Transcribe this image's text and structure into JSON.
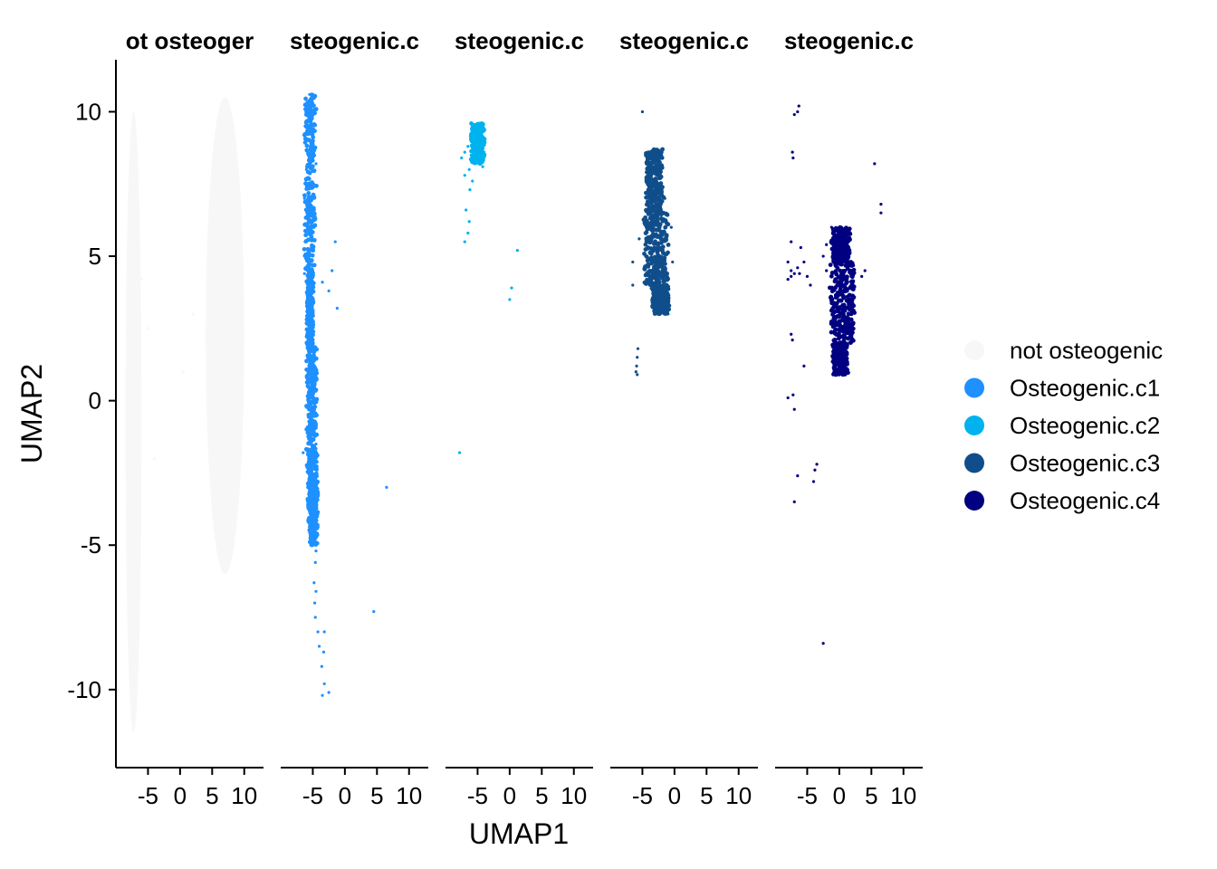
{
  "chart_data": {
    "type": "scatter",
    "facet": "split_by_group",
    "xlabel": "UMAP1",
    "ylabel": "UMAP2",
    "xlim": [
      -10,
      13
    ],
    "ylim": [
      -12.7,
      11.8
    ],
    "x_ticks": [
      -5,
      0,
      5,
      10
    ],
    "x_tick_labels": [
      "-5",
      "0",
      "5",
      "10"
    ],
    "y_ticks": [
      10,
      5,
      0,
      -5,
      -10
    ],
    "y_tick_labels": [
      "10",
      "5",
      "0",
      "-5",
      "-10"
    ],
    "grid": false,
    "legend_position": "right",
    "panels": [
      {
        "title": "ot osteoger",
        "group": "not osteogenic"
      },
      {
        "title": "steogenic.c",
        "group": "Osteogenic.c1"
      },
      {
        "title": "steogenic.c",
        "group": "Osteogenic.c2"
      },
      {
        "title": "steogenic.c",
        "group": "Osteogenic.c3"
      },
      {
        "title": "steogenic.c",
        "group": "Osteogenic.c4"
      }
    ],
    "series": [
      {
        "name": "not osteogenic",
        "color": "#f7f7f7",
        "regions": [
          {
            "x": [
              -8.5,
              -6
            ],
            "y": [
              -11.5,
              10
            ]
          },
          {
            "x": [
              4,
              10
            ],
            "y": [
              -6,
              10.5
            ]
          }
        ],
        "points": [
          [
            -7,
            5.5
          ],
          [
            -6,
            4.2
          ],
          [
            -5,
            2.5
          ],
          [
            0.5,
            1
          ],
          [
            2,
            3
          ],
          [
            -4,
            -2
          ]
        ]
      },
      {
        "name": "Osteogenic.c1",
        "color": "#1e90ff",
        "points": [
          [
            -5.5,
            10.6
          ],
          [
            -6.2,
            9.5
          ],
          [
            -5,
            9
          ],
          [
            -6,
            8
          ],
          [
            -4.5,
            8.2
          ],
          [
            -6.3,
            7
          ],
          [
            -5.4,
            6.5
          ],
          [
            -4.8,
            6
          ],
          [
            -6.2,
            5.5
          ],
          [
            -5.6,
            5
          ],
          [
            -5,
            4.5
          ],
          [
            -6.3,
            4.4
          ],
          [
            -3.5,
            4.1
          ],
          [
            -2.5,
            3.8
          ],
          [
            -2,
            4.5
          ],
          [
            -1.2,
            3.2
          ],
          [
            -1.5,
            5.5
          ],
          [
            -5.2,
            3
          ],
          [
            -5.5,
            2.5
          ],
          [
            -5.3,
            1
          ],
          [
            -4.8,
            0
          ],
          [
            -5.5,
            -1
          ],
          [
            -4.5,
            -1.5
          ],
          [
            -6.5,
            -1.8
          ],
          [
            -5.5,
            -2.2
          ],
          [
            -4.4,
            -2.5
          ],
          [
            -5.8,
            -3
          ],
          [
            -4.5,
            -3.5
          ],
          [
            -5.3,
            -4
          ],
          [
            -4.5,
            -5.2
          ],
          [
            -4.6,
            -5.6
          ],
          [
            -4.8,
            -6.3
          ],
          [
            -4.5,
            -6.6
          ],
          [
            -4.7,
            -7
          ],
          [
            -4.6,
            -7.5
          ],
          [
            -4.2,
            -8
          ],
          [
            -3.2,
            -8
          ],
          [
            -4,
            -8.5
          ],
          [
            -3.3,
            -8.7
          ],
          [
            -3.6,
            -9.2
          ],
          [
            -3.2,
            -9.8
          ],
          [
            -3.5,
            -10.2
          ],
          [
            -2.5,
            -10.1
          ],
          [
            6.5,
            -3
          ],
          [
            4.5,
            -7.3
          ]
        ],
        "cluster_spans": [
          [
            10.6,
            4.5,
            -6.4,
            -4.4
          ],
          [
            4.5,
            2.0,
            -5.8,
            -5.0
          ],
          [
            2.0,
            -2.5,
            -6.0,
            -4.3
          ],
          [
            -2.5,
            -5.0,
            -5.8,
            -4.2
          ]
        ]
      },
      {
        "name": "Osteogenic.c2",
        "color": "#00b2ee",
        "points": [
          [
            -5,
            9.6
          ],
          [
            -5.8,
            9.2
          ],
          [
            -4.5,
            9.2
          ],
          [
            -6.5,
            8.8
          ],
          [
            -4,
            8.6
          ],
          [
            -6,
            8.5
          ],
          [
            -5.5,
            8.2
          ],
          [
            -4.2,
            8.1
          ],
          [
            -7,
            8.6
          ],
          [
            -7.5,
            8.4
          ],
          [
            -7,
            7.8
          ],
          [
            -6.3,
            8
          ],
          [
            -5.8,
            7.6
          ],
          [
            -6.2,
            7.3
          ],
          [
            -6.8,
            6.6
          ],
          [
            -6.3,
            6.2
          ],
          [
            -6.5,
            5.8
          ],
          [
            -7,
            5.5
          ],
          [
            1.2,
            5.2
          ],
          [
            0.3,
            3.9
          ],
          [
            0,
            3.5
          ],
          [
            -7.8,
            -1.8
          ]
        ],
        "cluster_spans": [
          [
            9.6,
            8.2,
            -6.2,
            -3.8
          ]
        ]
      },
      {
        "name": "Osteogenic.c3",
        "color": "#104e8b",
        "points": [
          [
            -5,
            10
          ],
          [
            -3.5,
            8.6
          ],
          [
            -2,
            8.5
          ],
          [
            -4.2,
            7.5
          ],
          [
            -1.5,
            7
          ],
          [
            -4.7,
            6.2
          ],
          [
            -0.5,
            6
          ],
          [
            -5.5,
            5.6
          ],
          [
            -4.5,
            5
          ],
          [
            -0.3,
            4.8
          ],
          [
            -6.5,
            4.8
          ],
          [
            -6.5,
            4
          ],
          [
            -3.7,
            4.2
          ],
          [
            -2.6,
            3.6
          ],
          [
            -1.5,
            3.3
          ],
          [
            -1,
            3
          ],
          [
            -5.7,
            1.8
          ],
          [
            -5.8,
            1.5
          ],
          [
            -5.9,
            1.2
          ],
          [
            -6,
            1
          ],
          [
            -5.8,
            0.9
          ]
        ],
        "cluster_spans": [
          [
            8.7,
            6.5,
            -4.8,
            -1.4
          ],
          [
            6.5,
            4.0,
            -5.5,
            -0.3
          ],
          [
            4.0,
            3.0,
            -3.8,
            -0.6
          ]
        ]
      },
      {
        "name": "Osteogenic.c4",
        "color": "#000080",
        "points": [
          [
            -6.3,
            10.2
          ],
          [
            -6.5,
            10
          ],
          [
            -7,
            9.9
          ],
          [
            -7.2,
            8.4
          ],
          [
            -7.3,
            8.6
          ],
          [
            5.5,
            8.2
          ],
          [
            6.5,
            6.5
          ],
          [
            6.5,
            6.8
          ],
          [
            -1.2,
            6
          ],
          [
            -0.8,
            5.5
          ],
          [
            -7.5,
            5.5
          ],
          [
            -6,
            5.3
          ],
          [
            -2,
            5.4
          ],
          [
            -2.5,
            5
          ],
          [
            -5.5,
            4.8
          ],
          [
            -8,
            4.8
          ],
          [
            -7,
            4.4
          ],
          [
            -8,
            4.2
          ],
          [
            -7.5,
            4.5
          ],
          [
            -6.5,
            4.6
          ],
          [
            -6.2,
            4.4
          ],
          [
            -5,
            4.3
          ],
          [
            -4.5,
            4
          ],
          [
            -7.5,
            4.3
          ],
          [
            -2,
            4.5
          ],
          [
            4,
            4.5
          ],
          [
            3.5,
            4.3
          ],
          [
            -7.3,
            2.1
          ],
          [
            -7.5,
            2.3
          ],
          [
            -5.5,
            1.2
          ],
          [
            -8,
            0.1
          ],
          [
            -7.2,
            0.2
          ],
          [
            -7,
            -0.3
          ],
          [
            -3.5,
            -2.2
          ],
          [
            -3.8,
            -2.4
          ],
          [
            -4,
            -2.8
          ],
          [
            -6.5,
            -2.6
          ],
          [
            -7,
            -3.5
          ],
          [
            -2.5,
            -8.4
          ]
        ],
        "cluster_spans": [
          [
            6.0,
            4.8,
            -1.5,
            2.0
          ],
          [
            4.8,
            2.0,
            -2.0,
            3.0
          ],
          [
            2.0,
            0.9,
            -1.2,
            1.5
          ]
        ]
      }
    ]
  },
  "legend": {
    "items": [
      {
        "label": "not osteogenic",
        "color": "#f7f7f7"
      },
      {
        "label": "Osteogenic.c1",
        "color": "#1e90ff"
      },
      {
        "label": "Osteogenic.c2",
        "color": "#00b2ee"
      },
      {
        "label": "Osteogenic.c3",
        "color": "#104e8b"
      },
      {
        "label": "Osteogenic.c4",
        "color": "#000080"
      }
    ]
  }
}
